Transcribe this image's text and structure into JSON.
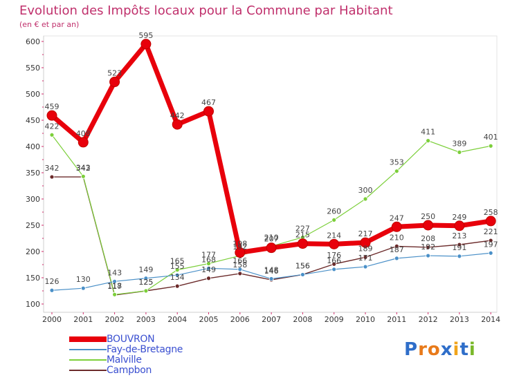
{
  "title": "Evolution des Impôts locaux pour la Commune par Habitant",
  "subtitle": "(en € et par an)",
  "logo_text": "Proxiti",
  "chart_data": {
    "type": "line",
    "title": "Evolution des Impôts locaux pour la Commune par Habitant",
    "subtitle": "(en € et par an)",
    "xlabel": "",
    "ylabel": "",
    "ylim": [
      100,
      600
    ],
    "yticks": [
      100,
      150,
      200,
      250,
      300,
      350,
      400,
      450,
      500,
      550,
      600
    ],
    "grid": false,
    "legend_position": "bottom-left",
    "categories": [
      "2000",
      "2001",
      "2002",
      "2003",
      "2004",
      "2005",
      "2006",
      "2007",
      "2008",
      "2009",
      "2010",
      "2011",
      "2012",
      "2013",
      "2014"
    ],
    "series": [
      {
        "name": "BOUVRON",
        "color": "#e8000b",
        "values": [
          459,
          408,
          523,
          595,
          442,
          467,
          198,
          207,
          215,
          214,
          217,
          247,
          250,
          249,
          258
        ]
      },
      {
        "name": "Fay-de-Bretagne",
        "color": "#4a90c8",
        "values": [
          126,
          130,
          143,
          149,
          155,
          168,
          166,
          148,
          156,
          166,
          171,
          187,
          192,
          191,
          197
        ]
      },
      {
        "name": "Malville",
        "color": "#7ccf3a",
        "values": [
          422,
          343,
          118,
          125,
          165,
          177,
          192,
          210,
          227,
          260,
          300,
          353,
          411,
          389,
          401
        ]
      },
      {
        "name": "Campbon",
        "color": "#6b2a2a",
        "values": [
          342,
          342,
          117,
          125,
          134,
          149,
          158,
          146,
          156,
          176,
          189,
          210,
          208,
          213,
          221
        ]
      }
    ]
  }
}
